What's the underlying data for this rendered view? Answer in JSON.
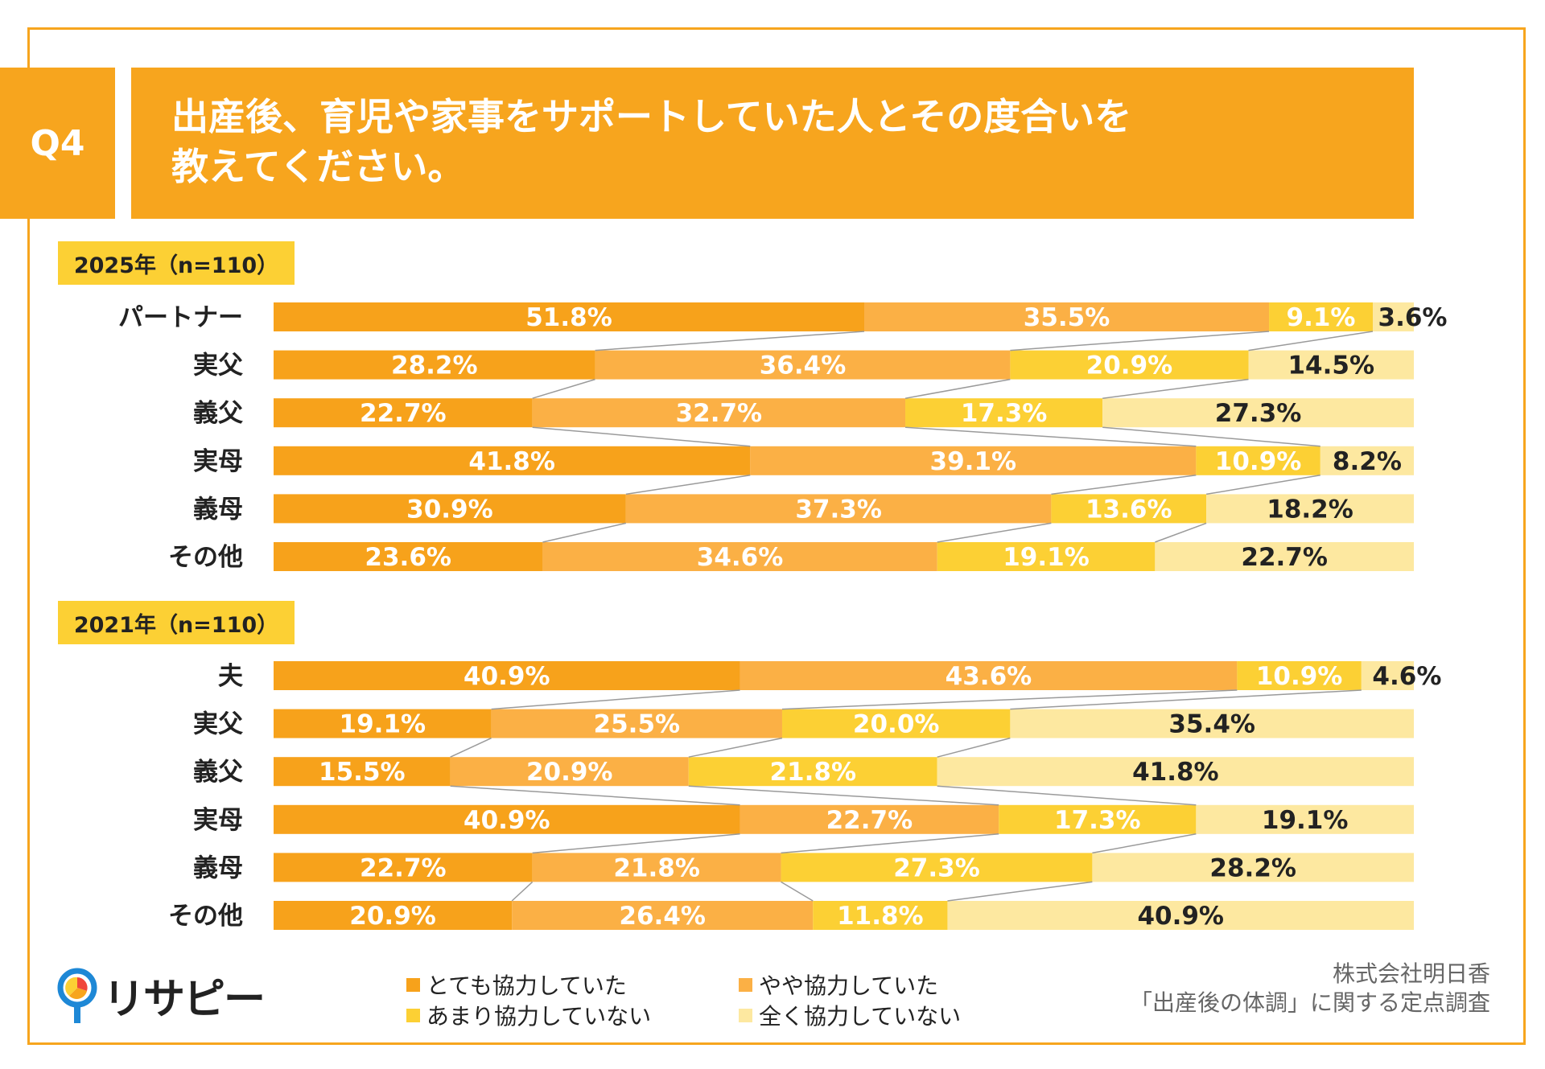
{
  "header": {
    "q_label": "Q4",
    "title_line1": "出産後、育児や家事をサポートしていた人とその度合いを",
    "title_line2": "教えてください。"
  },
  "colors": {
    "accent": "#f7a51e",
    "series": [
      "#f7a21b",
      "#fbb045",
      "#fcd034",
      "#fde8a0"
    ],
    "label_white": "#ffffff",
    "label_dark": "#222222"
  },
  "chart_data": [
    {
      "type": "bar",
      "orientation": "horizontal-stacked-100",
      "panel_label": "2025年（n=110）",
      "categories": [
        "パートナー",
        "実父",
        "義父",
        "実母",
        "義母",
        "その他"
      ],
      "series": [
        {
          "name": "とても協力していた",
          "values": [
            51.8,
            28.2,
            22.7,
            41.8,
            30.9,
            23.6
          ]
        },
        {
          "name": "やや協力していた",
          "values": [
            35.5,
            36.4,
            32.7,
            39.1,
            37.3,
            34.6
          ]
        },
        {
          "name": "あまり協力していない",
          "values": [
            9.1,
            20.9,
            17.3,
            10.9,
            13.6,
            19.1
          ]
        },
        {
          "name": "全く協力していない",
          "values": [
            3.6,
            14.5,
            27.3,
            8.2,
            18.2,
            22.7
          ]
        }
      ],
      "labels": [
        [
          "51.8%",
          "35.5%",
          "9.1%",
          "3.6%"
        ],
        [
          "28.2%",
          "36.4%",
          "20.9%",
          "14.5%"
        ],
        [
          "22.7%",
          "32.7%",
          "17.3%",
          "27.3%"
        ],
        [
          "41.8%",
          "39.1%",
          "10.9%",
          "8.2%"
        ],
        [
          "30.9%",
          "37.3%",
          "13.6%",
          "18.2%"
        ],
        [
          "23.6%",
          "34.6%",
          "19.1%",
          "22.7%"
        ]
      ],
      "xlim": [
        0,
        100
      ],
      "series_lines": true
    },
    {
      "type": "bar",
      "orientation": "horizontal-stacked-100",
      "panel_label": "2021年（n=110）",
      "categories": [
        "夫",
        "実父",
        "義父",
        "実母",
        "義母",
        "その他"
      ],
      "series": [
        {
          "name": "とても協力していた",
          "values": [
            40.9,
            19.1,
            15.5,
            40.9,
            22.7,
            20.9
          ]
        },
        {
          "name": "やや協力していた",
          "values": [
            43.6,
            25.5,
            20.9,
            22.7,
            21.8,
            26.4
          ]
        },
        {
          "name": "あまり協力していない",
          "values": [
            10.9,
            20.0,
            21.8,
            17.3,
            27.3,
            11.8
          ]
        },
        {
          "name": "全く協力していない",
          "values": [
            4.6,
            35.4,
            41.8,
            19.1,
            28.2,
            40.9
          ]
        }
      ],
      "labels": [
        [
          "40.9%",
          "43.6%",
          "10.9%",
          "4.6%"
        ],
        [
          "19.1%",
          "25.5%",
          "20.0%",
          "35.4%"
        ],
        [
          "15.5%",
          "20.9%",
          "21.8%",
          "41.8%"
        ],
        [
          "40.9%",
          "22.7%",
          "17.3%",
          "19.1%"
        ],
        [
          "22.7%",
          "21.8%",
          "27.3%",
          "28.2%"
        ],
        [
          "20.9%",
          "26.4%",
          "11.8%",
          "40.9%"
        ]
      ],
      "xlim": [
        0,
        100
      ],
      "series_lines": true
    }
  ],
  "legend": {
    "items": [
      {
        "label": "とても協力していた"
      },
      {
        "label": "やや協力していた"
      },
      {
        "label": "あまり協力していない"
      },
      {
        "label": "全く協力していない"
      }
    ]
  },
  "footer": {
    "logo_text": "リサピー",
    "credit_line1": "株式会社明日香",
    "credit_line2": "「出産後の体調」に関する定点調査"
  }
}
